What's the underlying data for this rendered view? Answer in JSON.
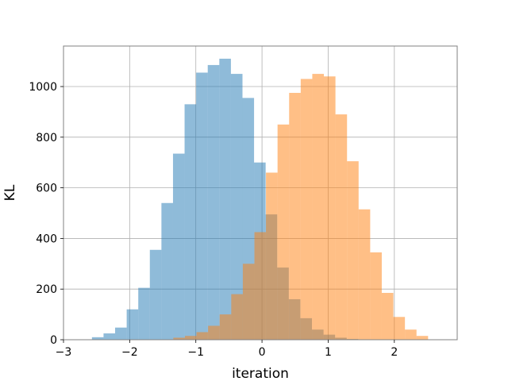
{
  "chart_data": {
    "type": "bar",
    "title": "",
    "xlabel": "iteration",
    "ylabel": "KL",
    "xlim": [
      -3,
      2.95
    ],
    "ylim": [
      0,
      1160
    ],
    "xticks": [
      -3,
      -2,
      -1,
      0,
      1,
      2
    ],
    "xtick_labels": [
      "−3",
      "−2",
      "−1",
      "0",
      "1",
      "2"
    ],
    "yticks": [
      0,
      200,
      400,
      600,
      800,
      1000
    ],
    "ytick_labels": [
      "0",
      "200",
      "400",
      "600",
      "800",
      "1000"
    ],
    "grid": true,
    "legend": "none",
    "series": [
      {
        "color": "#1f77b4",
        "opacity": 0.5,
        "bin_edges": [
          -2.57,
          -2.395,
          -2.22,
          -2.045,
          -1.87,
          -1.695,
          -1.52,
          -1.345,
          -1.17,
          -0.995,
          -0.82,
          -0.645,
          -0.47,
          -0.295,
          -0.12,
          0.055,
          0.23,
          0.405,
          0.58,
          0.755,
          0.93,
          1.105,
          1.28,
          1.455
        ],
        "values": [
          10,
          25,
          48,
          120,
          205,
          355,
          540,
          735,
          930,
          1055,
          1085,
          1110,
          1050,
          955,
          700,
          495,
          285,
          160,
          85,
          40,
          20,
          8,
          3
        ]
      },
      {
        "color": "#ff7f0e",
        "opacity": 0.5,
        "bin_edges": [
          -1.34,
          -1.165,
          -0.99,
          -0.815,
          -0.64,
          -0.465,
          -0.29,
          -0.115,
          0.06,
          0.235,
          0.41,
          0.585,
          0.76,
          0.935,
          1.11,
          1.285,
          1.46,
          1.635,
          1.81,
          1.985,
          2.16,
          2.335,
          2.51
        ],
        "values": [
          8,
          15,
          30,
          55,
          100,
          180,
          300,
          425,
          660,
          850,
          975,
          1030,
          1050,
          1040,
          890,
          705,
          515,
          345,
          185,
          90,
          40,
          15
        ]
      }
    ]
  }
}
